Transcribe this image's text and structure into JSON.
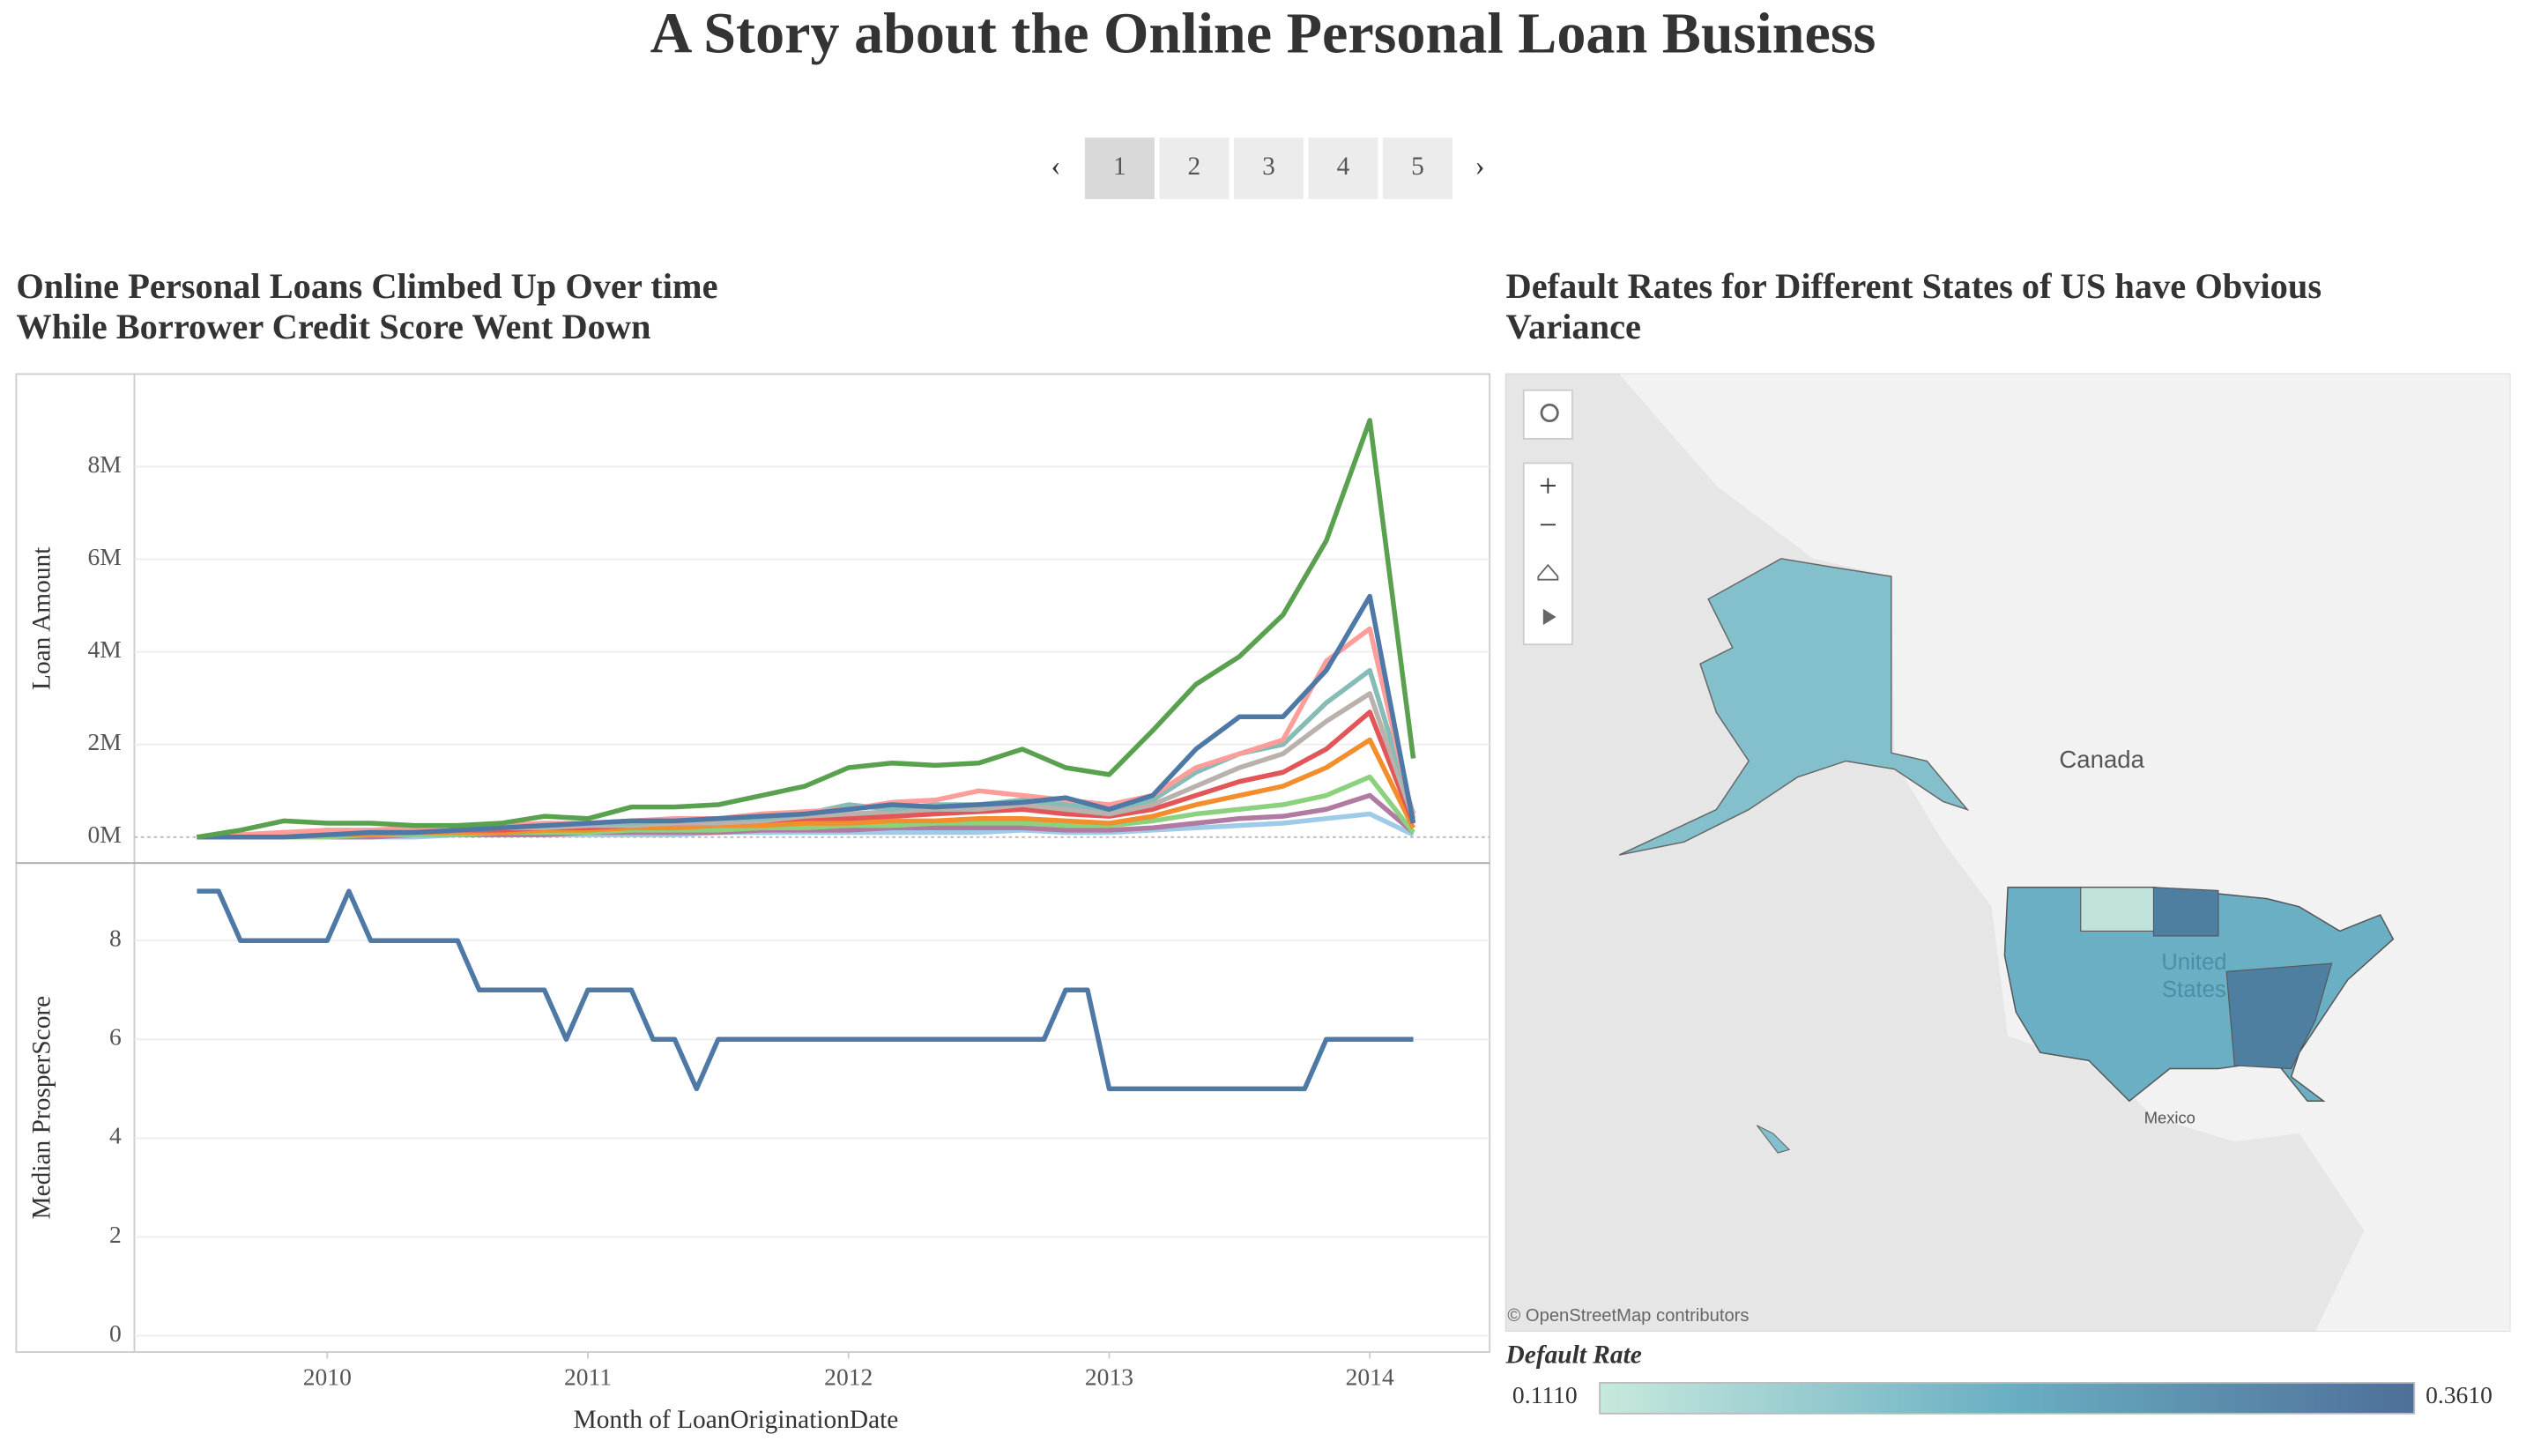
{
  "title": "A Story about the Online Personal Loan Business",
  "pages": [
    "1",
    "2",
    "3",
    "4",
    "5"
  ],
  "chart_data": [
    {
      "type": "line",
      "title": [
        "Online Personal Loans Climbed Up Over time",
        "While Borrower Credit Score Went Down"
      ],
      "ylabel": "Loan Amount",
      "x": [
        2009.5,
        2009.667,
        2009.833,
        2010,
        2010.167,
        2010.333,
        2010.5,
        2010.667,
        2010.833,
        2011,
        2011.167,
        2011.333,
        2011.5,
        2011.667,
        2011.833,
        2012,
        2012.167,
        2012.333,
        2012.5,
        2012.667,
        2012.833,
        2013,
        2013.167,
        2013.333,
        2013.5,
        2013.667,
        2013.833,
        2014,
        2014.167
      ],
      "xlim": [
        2009.26,
        2014.46
      ],
      "ylim": [
        -560000,
        10000000
      ],
      "yticks": [
        {
          "value": 0,
          "label": "0M"
        },
        {
          "value": 2000000,
          "label": "2M"
        },
        {
          "value": 4000000,
          "label": "4M"
        },
        {
          "value": 6000000,
          "label": "6M"
        },
        {
          "value": 8000000,
          "label": "8M"
        }
      ],
      "grid": true,
      "series": [
        {
          "color": "#a0cbe8",
          "values": [
            0,
            0,
            0,
            0,
            0,
            0,
            50000,
            50000,
            50000,
            50000,
            50000,
            50000,
            100000,
            100000,
            100000,
            100000,
            100000,
            100000,
            100000,
            150000,
            100000,
            100000,
            150000,
            200000,
            250000,
            300000,
            400000,
            500000,
            50000
          ]
        },
        {
          "color": "#b07aa1",
          "values": [
            0,
            0,
            0,
            0,
            0,
            50000,
            50000,
            50000,
            50000,
            100000,
            100000,
            100000,
            100000,
            150000,
            150000,
            150000,
            200000,
            200000,
            200000,
            200000,
            150000,
            150000,
            200000,
            300000,
            400000,
            450000,
            600000,
            900000,
            100000
          ]
        },
        {
          "color": "#8cd17d",
          "values": [
            0,
            0,
            0,
            0,
            50000,
            50000,
            50000,
            100000,
            100000,
            100000,
            150000,
            150000,
            150000,
            200000,
            200000,
            250000,
            250000,
            300000,
            300000,
            300000,
            250000,
            250000,
            350000,
            500000,
            600000,
            700000,
            900000,
            1300000,
            100000
          ]
        },
        {
          "color": "#f28e2b",
          "values": [
            0,
            0,
            0,
            50000,
            50000,
            100000,
            100000,
            100000,
            150000,
            150000,
            200000,
            200000,
            250000,
            250000,
            300000,
            300000,
            350000,
            350000,
            400000,
            400000,
            350000,
            300000,
            450000,
            700000,
            900000,
            1100000,
            1500000,
            2100000,
            200000
          ]
        },
        {
          "color": "#e15759",
          "values": [
            0,
            0,
            50000,
            100000,
            100000,
            100000,
            150000,
            150000,
            200000,
            200000,
            250000,
            300000,
            300000,
            350000,
            400000,
            400000,
            450000,
            500000,
            550000,
            600000,
            500000,
            450000,
            600000,
            900000,
            1200000,
            1400000,
            1900000,
            2700000,
            300000
          ]
        },
        {
          "color": "#bab0ac",
          "values": [
            0,
            0,
            50000,
            100000,
            100000,
            150000,
            150000,
            200000,
            200000,
            250000,
            250000,
            300000,
            300000,
            350000,
            450000,
            500000,
            550000,
            600000,
            600000,
            700000,
            600000,
            500000,
            700000,
            1100000,
            1500000,
            1800000,
            2500000,
            3100000,
            400000
          ]
        },
        {
          "color": "#86bcb6",
          "values": [
            0,
            50000,
            100000,
            100000,
            150000,
            150000,
            200000,
            200000,
            250000,
            300000,
            300000,
            350000,
            400000,
            400000,
            500000,
            700000,
            600000,
            700000,
            700000,
            800000,
            700000,
            600000,
            800000,
            1400000,
            1800000,
            2000000,
            2900000,
            3600000,
            500000
          ]
        },
        {
          "color": "#ff9d9a",
          "values": [
            0,
            50000,
            100000,
            150000,
            150000,
            200000,
            200000,
            250000,
            300000,
            300000,
            350000,
            400000,
            400000,
            500000,
            550000,
            600000,
            750000,
            800000,
            1000000,
            900000,
            800000,
            700000,
            900000,
            1500000,
            1800000,
            2100000,
            3800000,
            4500000,
            400000
          ]
        },
        {
          "color": "#4e79a7",
          "values": [
            0,
            0,
            0,
            50000,
            100000,
            100000,
            150000,
            200000,
            250000,
            300000,
            350000,
            350000,
            400000,
            450000,
            500000,
            600000,
            700000,
            650000,
            700000,
            750000,
            850000,
            600000,
            900000,
            1900000,
            2600000,
            2600000,
            3600000,
            5200000,
            300000
          ]
        },
        {
          "color": "#59a14f",
          "values": [
            0,
            150000,
            350000,
            300000,
            300000,
            250000,
            250000,
            300000,
            450000,
            400000,
            650000,
            650000,
            700000,
            900000,
            1100000,
            1500000,
            1600000,
            1550000,
            1600000,
            1900000,
            1500000,
            1350000,
            2300000,
            3300000,
            3900000,
            4800000,
            6400000,
            9000000,
            1700000
          ]
        }
      ]
    },
    {
      "type": "line",
      "ylabel": "Median ProsperScore",
      "xlabel": "Month of LoanOriginationDate",
      "x": [
        2009.5,
        2009.583,
        2009.667,
        2009.75,
        2009.833,
        2009.917,
        2010,
        2010.083,
        2010.167,
        2010.25,
        2010.333,
        2010.417,
        2010.5,
        2010.583,
        2010.667,
        2010.75,
        2010.833,
        2010.917,
        2011,
        2011.083,
        2011.167,
        2011.25,
        2011.333,
        2011.417,
        2011.5,
        2011.583,
        2011.667,
        2011.75,
        2011.833,
        2011.917,
        2012,
        2012.083,
        2012.167,
        2012.25,
        2012.333,
        2012.417,
        2012.5,
        2012.583,
        2012.667,
        2012.75,
        2012.833,
        2012.917,
        2013,
        2013.083,
        2013.167,
        2013.25,
        2013.333,
        2013.417,
        2013.5,
        2013.583,
        2013.667,
        2013.75,
        2013.833,
        2013.917,
        2014,
        2014.083,
        2014.167
      ],
      "xlim": [
        2009.26,
        2014.46
      ],
      "xticks": [
        2010,
        2011,
        2012,
        2013,
        2014
      ],
      "ylim": [
        -0.33,
        9.57
      ],
      "yticks": [
        0,
        2,
        4,
        6,
        8
      ],
      "grid": true,
      "series": [
        {
          "color": "#4e79a7",
          "values": [
            9,
            9,
            8,
            8,
            8,
            8,
            8,
            9,
            8,
            8,
            8,
            8,
            8,
            7,
            7,
            7,
            7,
            6,
            7,
            7,
            7,
            6,
            6,
            5,
            6,
            6,
            6,
            6,
            6,
            6,
            6,
            6,
            6,
            6,
            6,
            6,
            6,
            6,
            6,
            6,
            7,
            7,
            5,
            5,
            5,
            5,
            5,
            5,
            5,
            5,
            5,
            5,
            6,
            6,
            6,
            6,
            6
          ]
        }
      ]
    },
    {
      "type": "map",
      "title": [
        "Default Rates for Different States of US have Obvious",
        "Variance"
      ],
      "labels": [
        "Canada",
        "United",
        "States",
        "Mexico"
      ],
      "attribution": "© OpenStreetMap contributors",
      "legend": {
        "title": "Default Rate",
        "min": {
          "value": 0.111,
          "label": "0.1110"
        },
        "max": {
          "value": 0.361,
          "label": "0.3610"
        },
        "colors": [
          "#c7e9dd",
          "#6aafc3",
          "#4e6f99"
        ]
      }
    }
  ]
}
